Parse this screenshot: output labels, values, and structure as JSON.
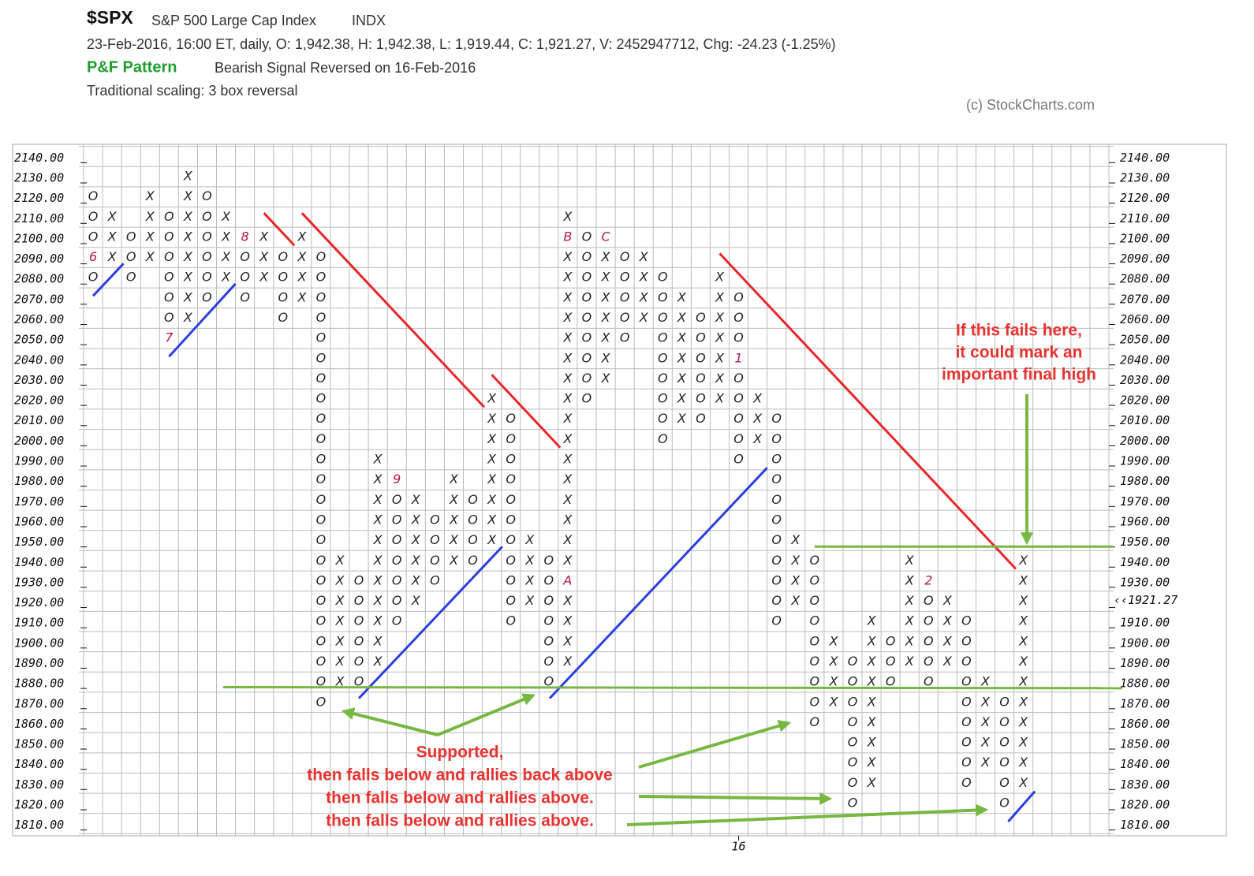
{
  "header": {
    "symbol": "$SPX",
    "name": "S&P 500 Large Cap Index",
    "exchange": "INDX",
    "quote": "23-Feb-2016, 16:00 ET, daily, O: 1,942.38, H: 1,942.38, L: 1,919.44, C: 1,921.27, V: 2452947712, Chg: -24.23 (-1.25%)",
    "pattern_title": "P&F Pattern",
    "pattern": "Bearish Signal Reversed on 16-Feb-2016",
    "scaling": "Traditional scaling: 3 box reversal",
    "copyright": "(c) StockCharts.com"
  },
  "chart_data": {
    "type": "pnf",
    "box_size": 10,
    "ylim": [
      1804,
      2146
    ],
    "xlim": [
      -0.5,
      53.5
    ],
    "yticks": [
      {
        "value": 2140,
        "label": "2140.00"
      },
      {
        "value": 2130,
        "label": "2130.00"
      },
      {
        "value": 2120,
        "label": "2120.00"
      },
      {
        "value": 2110,
        "label": "2110.00"
      },
      {
        "value": 2100,
        "label": "2100.00"
      },
      {
        "value": 2090,
        "label": "2090.00"
      },
      {
        "value": 2080,
        "label": "2080.00"
      },
      {
        "value": 2070,
        "label": "2070.00"
      },
      {
        "value": 2060,
        "label": "2060.00"
      },
      {
        "value": 2050,
        "label": "2050.00"
      },
      {
        "value": 2040,
        "label": "2040.00"
      },
      {
        "value": 2030,
        "label": "2030.00"
      },
      {
        "value": 2020,
        "label": "2020.00"
      },
      {
        "value": 2010,
        "label": "2010.00"
      },
      {
        "value": 2000,
        "label": "2000.00"
      },
      {
        "value": 1990,
        "label": "1990.00"
      },
      {
        "value": 1980,
        "label": "1980.00"
      },
      {
        "value": 1970,
        "label": "1970.00"
      },
      {
        "value": 1960,
        "label": "1960.00"
      },
      {
        "value": 1950,
        "label": "1950.00"
      },
      {
        "value": 1940,
        "label": "1940.00"
      },
      {
        "value": 1930,
        "label": "1930.00"
      },
      {
        "value": 1920,
        "label": "1920.00"
      },
      {
        "value": 1910,
        "label": "1910.00"
      },
      {
        "value": 1900,
        "label": "1900.00"
      },
      {
        "value": 1890,
        "label": "1890.00"
      },
      {
        "value": 1880,
        "label": "1880.00"
      },
      {
        "value": 1870,
        "label": "1870.00"
      },
      {
        "value": 1860,
        "label": "1860.00"
      },
      {
        "value": 1850,
        "label": "1850.00"
      },
      {
        "value": 1840,
        "label": "1840.00"
      },
      {
        "value": 1830,
        "label": "1830.00"
      },
      {
        "value": 1820,
        "label": "1820.00"
      },
      {
        "value": 1810,
        "label": "1810.00"
      }
    ],
    "highlighted_ytick": 1920,
    "highlight_color": "#c2185b",
    "last_price": {
      "value": 1921.27,
      "label": "‹‹1921.27"
    },
    "x_labels": [
      {
        "column": 34,
        "label": "16"
      }
    ],
    "symbol_color": "#222222",
    "mark_color": "#b0174a",
    "columns": [
      {
        "symbol": "O",
        "top": 2120,
        "bottom": 2080
      },
      {
        "symbol": "X",
        "top": 2110,
        "bottom": 2090
      },
      {
        "symbol": "O",
        "top": 2100,
        "bottom": 2080
      },
      {
        "symbol": "X",
        "top": 2120,
        "bottom": 2090
      },
      {
        "symbol": "O",
        "top": 2110,
        "bottom": 2050
      },
      {
        "symbol": "X",
        "top": 2130,
        "bottom": 2060
      },
      {
        "symbol": "O",
        "top": 2120,
        "bottom": 2070
      },
      {
        "symbol": "X",
        "top": 2110,
        "bottom": 2080
      },
      {
        "symbol": "O",
        "top": 2100,
        "bottom": 2070
      },
      {
        "symbol": "X",
        "top": 2100,
        "bottom": 2080
      },
      {
        "symbol": "O",
        "top": 2090,
        "bottom": 2060
      },
      {
        "symbol": "X",
        "top": 2100,
        "bottom": 2070
      },
      {
        "symbol": "O",
        "top": 2090,
        "bottom": 1870
      },
      {
        "symbol": "X",
        "top": 1940,
        "bottom": 1880
      },
      {
        "symbol": "O",
        "top": 1930,
        "bottom": 1880
      },
      {
        "symbol": "X",
        "top": 1990,
        "bottom": 1890
      },
      {
        "symbol": "O",
        "top": 1980,
        "bottom": 1910
      },
      {
        "symbol": "X",
        "top": 1970,
        "bottom": 1920
      },
      {
        "symbol": "O",
        "top": 1960,
        "bottom": 1930
      },
      {
        "symbol": "X",
        "top": 1980,
        "bottom": 1940
      },
      {
        "symbol": "O",
        "top": 1970,
        "bottom": 1940
      },
      {
        "symbol": "X",
        "top": 2020,
        "bottom": 1950
      },
      {
        "symbol": "O",
        "top": 2010,
        "bottom": 1910
      },
      {
        "symbol": "X",
        "top": 1950,
        "bottom": 1920
      },
      {
        "symbol": "O",
        "top": 1940,
        "bottom": 1880
      },
      {
        "symbol": "X",
        "top": 2110,
        "bottom": 1890
      },
      {
        "symbol": "O",
        "top": 2100,
        "bottom": 2020
      },
      {
        "symbol": "X",
        "top": 2100,
        "bottom": 2030
      },
      {
        "symbol": "O",
        "top": 2090,
        "bottom": 2050
      },
      {
        "symbol": "X",
        "top": 2090,
        "bottom": 2060
      },
      {
        "symbol": "O",
        "top": 2080,
        "bottom": 2000
      },
      {
        "symbol": "X",
        "top": 2070,
        "bottom": 2010
      },
      {
        "symbol": "O",
        "top": 2060,
        "bottom": 2010
      },
      {
        "symbol": "X",
        "top": 2080,
        "bottom": 2020
      },
      {
        "symbol": "O",
        "top": 2070,
        "bottom": 1990
      },
      {
        "symbol": "X",
        "top": 2020,
        "bottom": 2000
      },
      {
        "symbol": "O",
        "top": 2010,
        "bottom": 1910
      },
      {
        "symbol": "X",
        "top": 1950,
        "bottom": 1920
      },
      {
        "symbol": "O",
        "top": 1940,
        "bottom": 1860
      },
      {
        "symbol": "X",
        "top": 1900,
        "bottom": 1870
      },
      {
        "symbol": "O",
        "top": 1890,
        "bottom": 1820
      },
      {
        "symbol": "X",
        "top": 1910,
        "bottom": 1830
      },
      {
        "symbol": "O",
        "top": 1900,
        "bottom": 1880
      },
      {
        "symbol": "X",
        "top": 1940,
        "bottom": 1890
      },
      {
        "symbol": "O",
        "top": 1930,
        "bottom": 1880
      },
      {
        "symbol": "X",
        "top": 1920,
        "bottom": 1890
      },
      {
        "symbol": "O",
        "top": 1910,
        "bottom": 1830
      },
      {
        "symbol": "X",
        "top": 1880,
        "bottom": 1840
      },
      {
        "symbol": "O",
        "top": 1870,
        "bottom": 1820
      },
      {
        "symbol": "X",
        "top": 1940,
        "bottom": 1830
      }
    ],
    "month_marks": [
      {
        "column": 0,
        "value": 2090,
        "label": "6"
      },
      {
        "column": 4,
        "value": 2050,
        "label": "7"
      },
      {
        "column": 8,
        "value": 2100,
        "label": "8"
      },
      {
        "column": 16,
        "value": 1980,
        "label": "9"
      },
      {
        "column": 25,
        "value": 1930,
        "label": "A"
      },
      {
        "column": 25,
        "value": 2100,
        "label": "B"
      },
      {
        "column": 27,
        "value": 2100,
        "label": "C"
      },
      {
        "column": 34,
        "value": 2040,
        "label": "1"
      },
      {
        "column": 44,
        "value": 1930,
        "label": "2"
      }
    ],
    "lines": [
      {
        "color": "#e8262b",
        "from": [
          9,
          2112
        ],
        "to": [
          10.6,
          2096
        ]
      },
      {
        "color": "#e8262b",
        "from": [
          11,
          2112
        ],
        "to": [
          20.6,
          2016
        ]
      },
      {
        "color": "#e8262b",
        "from": [
          21,
          2032
        ],
        "to": [
          24.6,
          1996
        ]
      },
      {
        "color": "#e8262b",
        "from": [
          33,
          2092
        ],
        "to": [
          48.6,
          1936
        ]
      },
      {
        "color": "#2a3fe0",
        "from": [
          0,
          2071
        ],
        "to": [
          1.6,
          2087
        ]
      },
      {
        "color": "#2a3fe0",
        "from": [
          4,
          2041
        ],
        "to": [
          7.5,
          2077
        ]
      },
      {
        "color": "#2a3fe0",
        "from": [
          14,
          1872
        ],
        "to": [
          21.55,
          1947
        ]
      },
      {
        "color": "#2a3fe0",
        "from": [
          24.05,
          1872
        ],
        "to": [
          35.5,
          1986
        ]
      },
      {
        "color": "#2a3fe0",
        "from": [
          48.2,
          1811
        ],
        "to": [
          49.6,
          1826
        ]
      },
      {
        "color": "#77b843",
        "from": [
          6.85,
          1877.5
        ],
        "to": [
          54.2,
          1877
        ]
      },
      {
        "color": "#77b843",
        "from": [
          38,
          1947
        ],
        "to": [
          53.7,
          1947
        ]
      }
    ],
    "annotations": [
      {
        "lines": [
          "If this fails here,",
          "it could mark an",
          "important final high"
        ]
      },
      {
        "lines": [
          "Supported,",
          "then falls below and rallies back above",
          "then falls below and rallies above.",
          "then falls below and rallies above."
        ]
      }
    ]
  }
}
